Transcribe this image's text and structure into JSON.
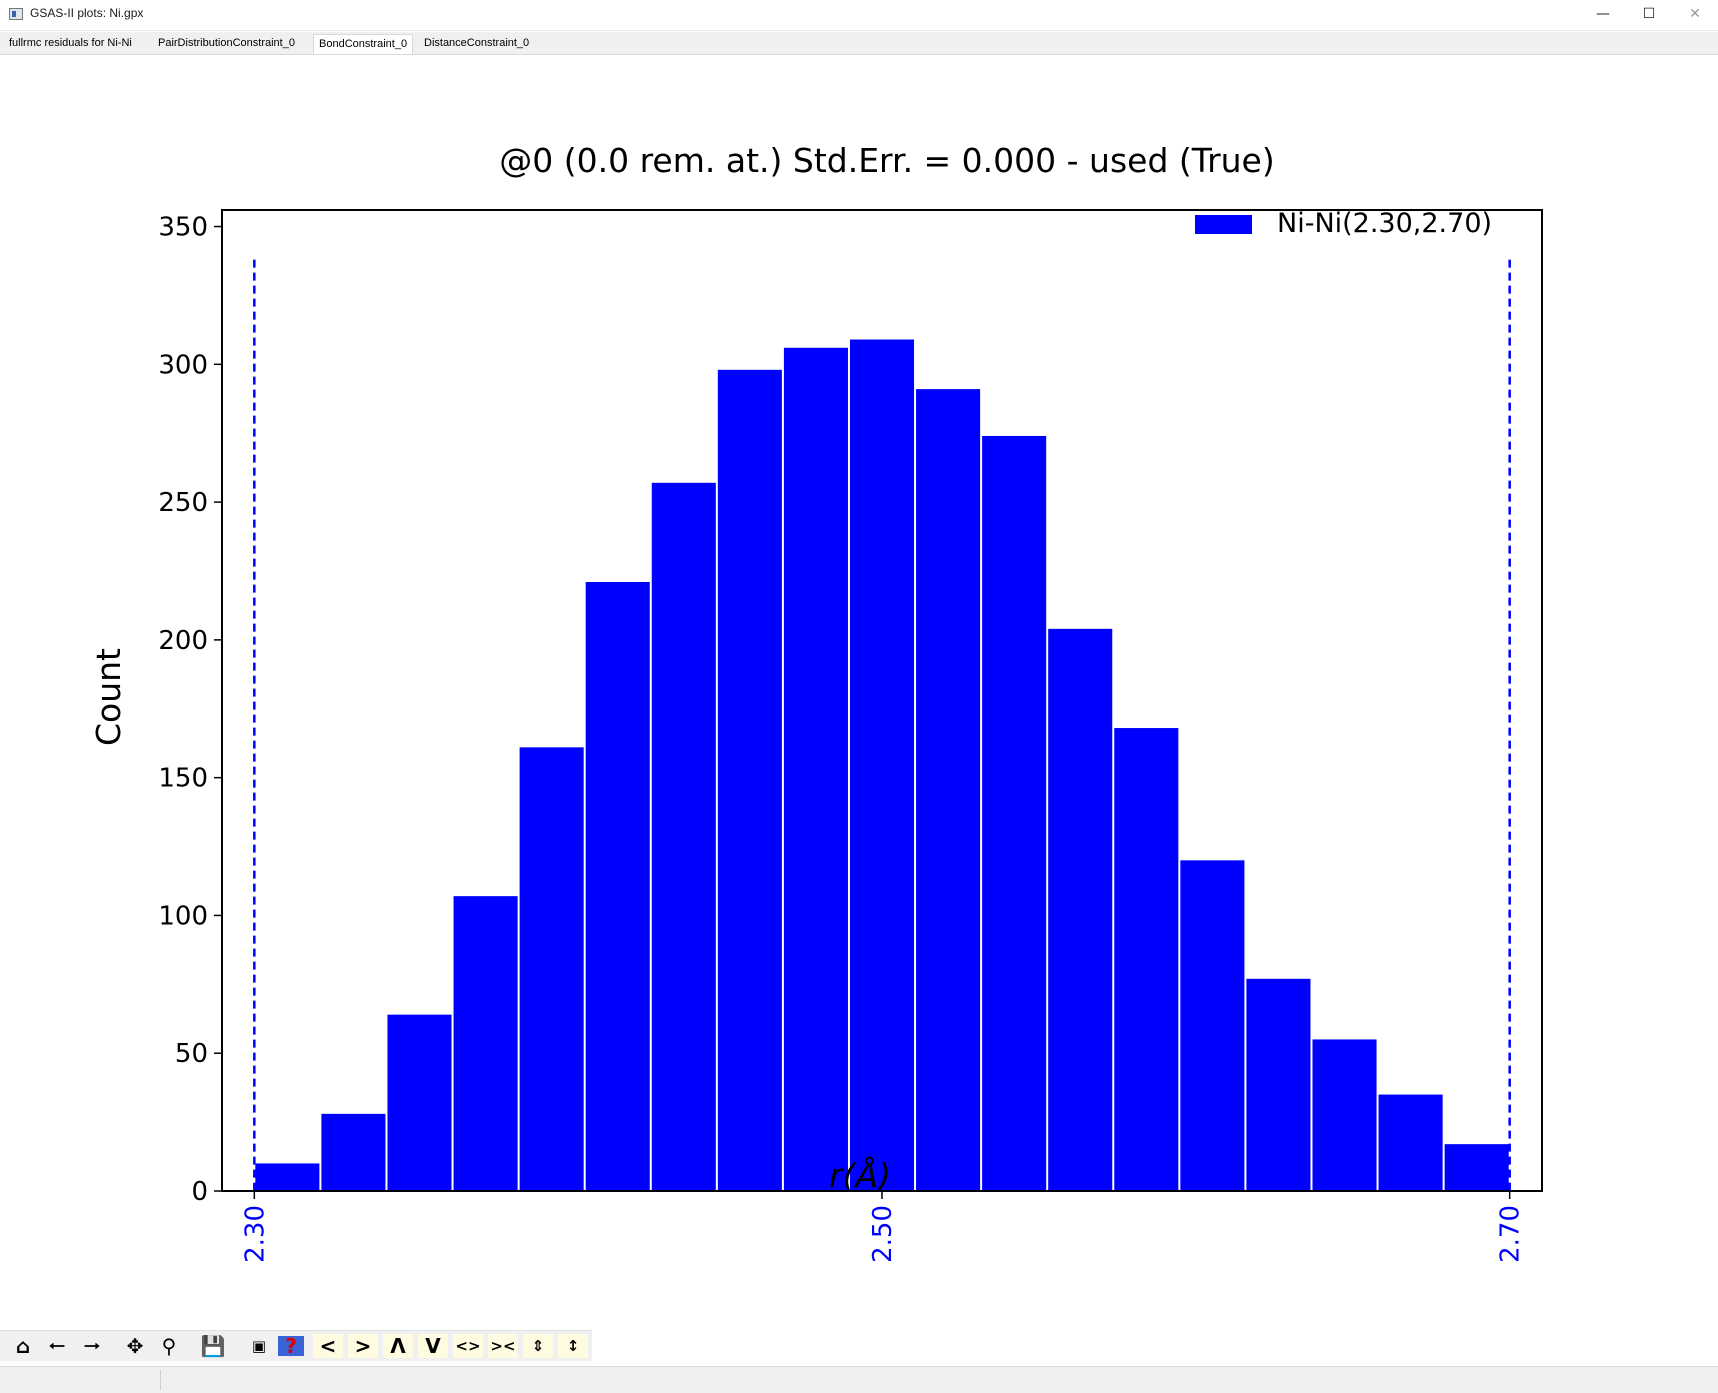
{
  "window": {
    "title": "GSAS-II plots: Ni.gpx",
    "minimize_glyph": "—",
    "maximize_glyph": "☐",
    "close_glyph": "✕"
  },
  "tabs": [
    {
      "label": "fullrmc residuals for Ni-Ni"
    },
    {
      "label": "PairDistributionConstraint_0"
    },
    {
      "label": "BondConstraint_0"
    },
    {
      "label": "DistanceConstraint_0"
    }
  ],
  "active_tab": 2,
  "chart_data": {
    "type": "bar",
    "title": "@0 (0.0 rem. at.) Std.Err. = 0.000 - used (True)",
    "xlabel": "r(Å)",
    "ylabel": "Count",
    "ylim": [
      0,
      356
    ],
    "xlim": [
      2.2897,
      2.7103
    ],
    "yticks": [
      "0",
      "50",
      "100",
      "150",
      "200",
      "250",
      "300",
      "350"
    ],
    "xticks": [
      {
        "value": 2.3,
        "label": "2.30"
      },
      {
        "value": 2.5,
        "label": "2.50"
      },
      {
        "value": 2.7,
        "label": "2.70"
      }
    ],
    "bin_start": 2.3,
    "bin_width": 0.021053,
    "series": [
      {
        "name": "Ni-Ni(2.30,2.70)",
        "color": "#0000ff",
        "values": [
          10,
          28,
          64,
          107,
          161,
          221,
          257,
          298,
          306,
          309,
          291,
          274,
          204,
          168,
          120,
          77,
          55,
          35,
          17
        ]
      }
    ],
    "reference_lines": [
      {
        "x": 2.3,
        "y_top": 338,
        "style": "dashed",
        "color": "#0000ff"
      },
      {
        "x": 2.7,
        "y_top": 338,
        "style": "dashed",
        "color": "#0000ff"
      }
    ],
    "legend_position": "top-right",
    "grid": false
  },
  "toolbar": {
    "icons": [
      "home-icon",
      "back-arrow-icon",
      "forward-arrow-icon",
      "pan-icon",
      "zoom-icon",
      "save-icon",
      "configure-subplots-icon",
      "help-icon",
      "shift-left-icon",
      "shift-right-icon",
      "shift-up-icon",
      "shift-down-icon",
      "expand-x-icon",
      "shrink-x-icon",
      "expand-y-icon",
      "shrink-y-icon"
    ]
  },
  "colors": {
    "bar": "#0000ff",
    "tick_label_x": "#0000ff",
    "text": "#000000"
  }
}
